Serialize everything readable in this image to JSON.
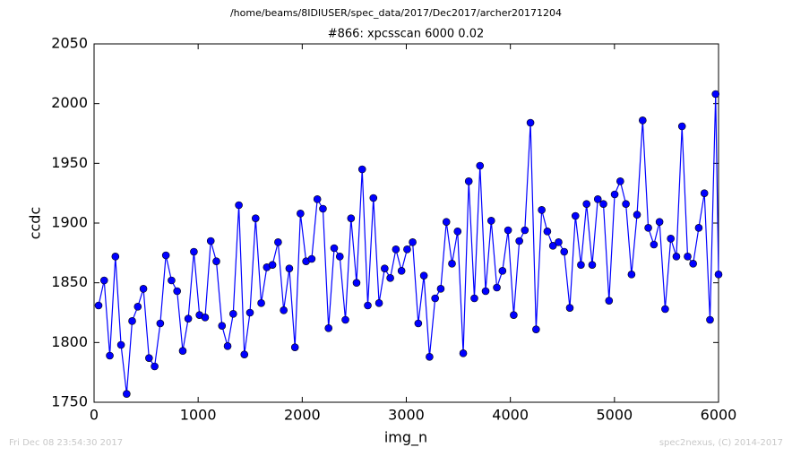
{
  "chart_data": {
    "type": "line",
    "suptitle": "/home/beams/8IDIUSER/spec_data/2017/Dec2017/archer20171204",
    "title": "#866: xpcsscan 6000 0.02",
    "xlabel": "img_n",
    "ylabel": "ccdc",
    "footer_left": "Fri Dec 08 23:54:30 2017",
    "footer_right": "spec2nexus, (C) 2014-2017",
    "color": "#0000ff",
    "x": [
      43,
      97,
      151,
      205,
      259,
      313,
      366,
      420,
      474,
      528,
      582,
      636,
      690,
      744,
      798,
      852,
      905,
      959,
      1013,
      1067,
      1121,
      1175,
      1229,
      1283,
      1337,
      1391,
      1444,
      1498,
      1552,
      1606,
      1660,
      1714,
      1768,
      1822,
      1876,
      1930,
      1983,
      2037,
      2091,
      2145,
      2199,
      2253,
      2307,
      2361,
      2415,
      2469,
      2522,
      2576,
      2630,
      2684,
      2738,
      2792,
      2846,
      2900,
      2954,
      3008,
      3061,
      3115,
      3169,
      3223,
      3277,
      3331,
      3385,
      3439,
      3493,
      3547,
      3600,
      3654,
      3708,
      3762,
      3816,
      3870,
      3924,
      3978,
      4032,
      4086,
      4139,
      4193,
      4247,
      4301,
      4355,
      4409,
      4463,
      4517,
      4571,
      4625,
      4678,
      4732,
      4786,
      4840,
      4894,
      4948,
      5002,
      5056,
      5110,
      5164,
      5217,
      5271,
      5325,
      5379,
      5433,
      5487,
      5541,
      5595,
      5649,
      5703,
      5756,
      5810,
      5864,
      5918,
      5972,
      6000
    ],
    "values": [
      1831,
      1852,
      1789,
      1872,
      1798,
      1757,
      1818,
      1830,
      1845,
      1787,
      1780,
      1816,
      1873,
      1852,
      1843,
      1793,
      1820,
      1876,
      1823,
      1821,
      1885,
      1868,
      1814,
      1797,
      1824,
      1915,
      1790,
      1825,
      1904,
      1833,
      1863,
      1865,
      1884,
      1827,
      1862,
      1796,
      1908,
      1868,
      1870,
      1920,
      1912,
      1812,
      1879,
      1872,
      1819,
      1904,
      1850,
      1945,
      1831,
      1921,
      1833,
      1862,
      1854,
      1878,
      1860,
      1878,
      1884,
      1816,
      1856,
      1788,
      1837,
      1845,
      1901,
      1866,
      1893,
      1791,
      1935,
      1837,
      1948,
      1843,
      1902,
      1846,
      1860,
      1894,
      1823,
      1885,
      1894,
      1984,
      1811,
      1911,
      1893,
      1881,
      1884,
      1876,
      1829,
      1906,
      1865,
      1916,
      1865,
      1920,
      1916,
      1835,
      1924,
      1935,
      1916,
      1857,
      1907,
      1986,
      1896,
      1882,
      1901,
      1828,
      1887,
      1872,
      1981,
      1872,
      1866,
      1896,
      1925,
      1819,
      2008,
      1857
    ],
    "xlim": [
      0,
      6000
    ],
    "xticks": [
      0,
      1000,
      2000,
      3000,
      4000,
      5000,
      6000
    ],
    "ylim": [
      1750,
      2050
    ],
    "yticks": [
      1750,
      1800,
      1850,
      1900,
      1950,
      2000,
      2050
    ]
  }
}
